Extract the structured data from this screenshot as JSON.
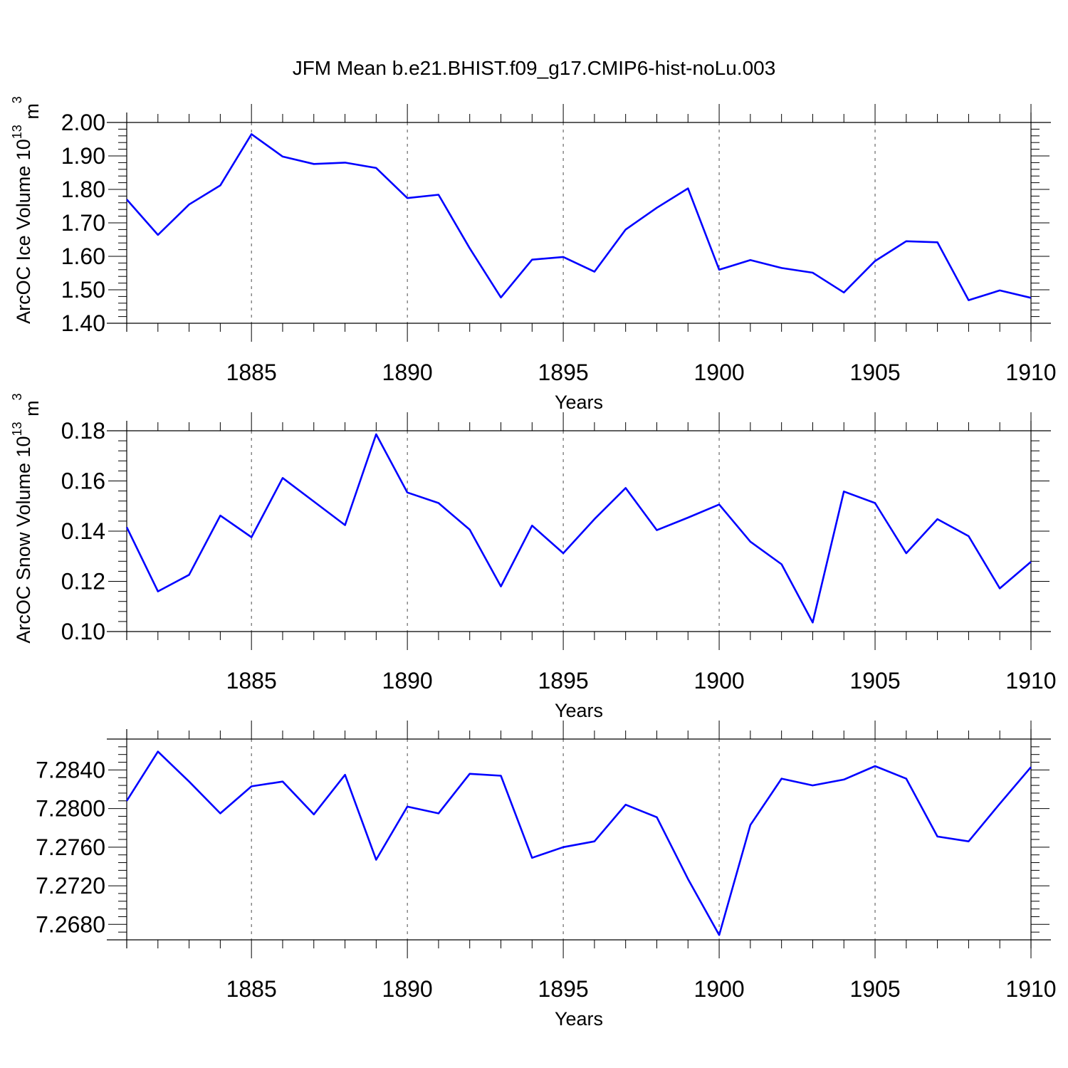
{
  "title": "JFM Mean b.e21.BHIST.f09_g17.CMIP6-hist-noLu.003",
  "colors": {
    "line": "#0000ff",
    "axis": "#000000"
  },
  "chart_data": [
    {
      "type": "line",
      "xlabel": "Years",
      "ylabel": "ArcOC Ice Volume 10",
      "ylabel_sup": "13",
      "ylabel_unit": " m",
      "ylabel_unit_sup": "3",
      "xlim": [
        1881,
        1910
      ],
      "ylim": [
        1.4,
        2.0
      ],
      "x_ticks": [
        "1885",
        "1890",
        "1895",
        "1900",
        "1905",
        "1910"
      ],
      "y_ticks": [
        "1.40",
        "1.50",
        "1.60",
        "1.70",
        "1.80",
        "1.90",
        "2.00"
      ],
      "grid": "vertical dashed at major x ticks",
      "series": [
        {
          "x": [
            1881,
            1882,
            1883,
            1884,
            1885,
            1886,
            1887,
            1888,
            1889,
            1890,
            1891,
            1892,
            1893,
            1894,
            1895,
            1896,
            1897,
            1898,
            1899,
            1900,
            1901,
            1902,
            1903,
            1904,
            1905,
            1906,
            1907,
            1908,
            1909,
            1910
          ],
          "values": [
            1.77,
            1.664,
            1.755,
            1.812,
            1.965,
            1.898,
            1.876,
            1.88,
            1.864,
            1.774,
            1.784,
            1.624,
            1.477,
            1.59,
            1.598,
            1.554,
            1.68,
            1.745,
            1.803,
            1.56,
            1.589,
            1.565,
            1.551,
            1.492,
            1.586,
            1.645,
            1.642,
            1.469,
            1.498,
            1.476
          ]
        }
      ]
    },
    {
      "type": "line",
      "xlabel": "Years",
      "ylabel": "ArcOC Snow Volume 10",
      "ylabel_sup": "13",
      "ylabel_unit": " m",
      "ylabel_unit_sup": "3",
      "xlim": [
        1881,
        1910
      ],
      "ylim": [
        0.1,
        0.18
      ],
      "x_ticks": [
        "1885",
        "1890",
        "1895",
        "1900",
        "1905",
        "1910"
      ],
      "y_ticks": [
        "0.10",
        "0.12",
        "0.14",
        "0.16",
        "0.18"
      ],
      "grid": "vertical dashed at major x ticks",
      "series": [
        {
          "x": [
            1881,
            1882,
            1883,
            1884,
            1885,
            1886,
            1887,
            1888,
            1889,
            1890,
            1891,
            1892,
            1893,
            1894,
            1895,
            1896,
            1897,
            1898,
            1899,
            1900,
            1901,
            1902,
            1903,
            1904,
            1905,
            1906,
            1907,
            1908,
            1909,
            1910
          ],
          "values": [
            0.1416,
            0.116,
            0.1226,
            0.1462,
            0.1376,
            0.1612,
            0.1518,
            0.1424,
            0.1786,
            0.1554,
            0.1512,
            0.1406,
            0.118,
            0.1422,
            0.1312,
            0.1448,
            0.1572,
            0.1404,
            0.1454,
            0.1506,
            0.1358,
            0.1268,
            0.1036,
            0.1558,
            0.1512,
            0.1312,
            0.1448,
            0.138,
            0.1172,
            0.1278
          ]
        }
      ]
    },
    {
      "type": "line",
      "xlabel": "Years",
      "ylabel": "",
      "xlim": [
        1881,
        1910
      ],
      "ylim": [
        7.2664,
        7.2872
      ],
      "x_ticks": [
        "1885",
        "1890",
        "1895",
        "1900",
        "1905",
        "1910"
      ],
      "y_ticks": [
        "7.2680",
        "7.2720",
        "7.2760",
        "7.2800",
        "7.2840"
      ],
      "grid": "vertical dashed at major x ticks",
      "series": [
        {
          "x": [
            1881,
            1882,
            1883,
            1884,
            1885,
            1886,
            1887,
            1888,
            1889,
            1890,
            1891,
            1892,
            1893,
            1894,
            1895,
            1896,
            1897,
            1898,
            1899,
            1900,
            1901,
            1902,
            1903,
            1904,
            1905,
            1906,
            1907,
            1908,
            1909,
            1910
          ],
          "values": [
            7.2808,
            7.2859,
            7.2828,
            7.2795,
            7.2823,
            7.2828,
            7.2794,
            7.2835,
            7.2747,
            7.2802,
            7.2795,
            7.2836,
            7.2834,
            7.2749,
            7.276,
            7.2766,
            7.2804,
            7.2791,
            7.2727,
            7.2669,
            7.2783,
            7.2831,
            7.2824,
            7.283,
            7.2844,
            7.2831,
            7.2771,
            7.2766,
            7.2805,
            7.2843
          ]
        }
      ]
    }
  ]
}
